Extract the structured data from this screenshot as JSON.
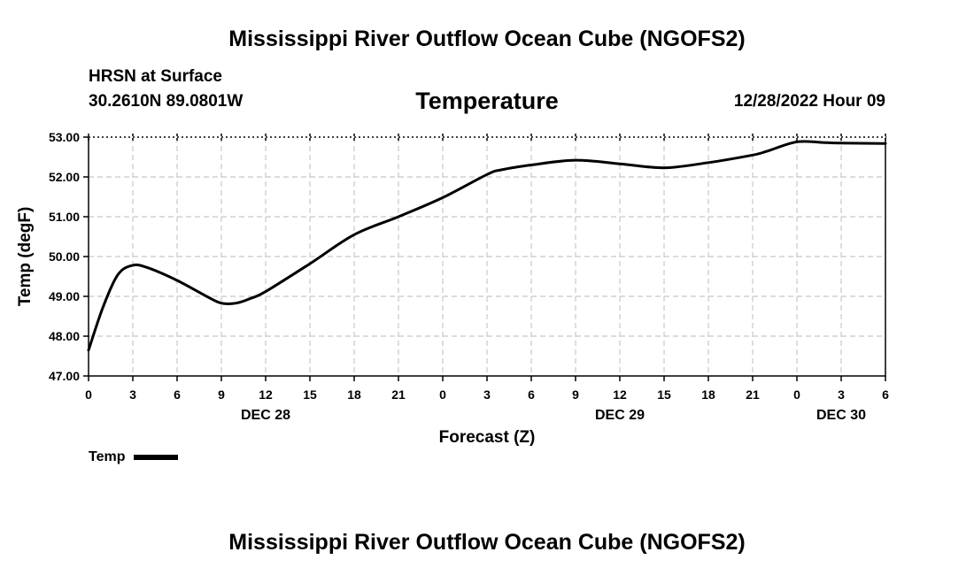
{
  "header": {
    "title": "Mississippi River Outflow Ocean Cube (NGOFS2)",
    "station": "HRSN at Surface",
    "coordinates": "30.2610N  89.0801W",
    "variable_title": "Temperature",
    "datetime": "12/28/2022 Hour 09"
  },
  "footer": {
    "title": "Mississippi River Outflow Ocean Cube (NGOFS2)"
  },
  "legend": {
    "label": "Temp"
  },
  "colors": {
    "line": "#000000",
    "grid": "#c8c8c8",
    "axis": "#000000"
  },
  "chart_data": {
    "type": "line",
    "title": "Temperature",
    "xlabel": "Forecast (Z)",
    "ylabel": "Temp (degF)",
    "xlim": [
      0,
      54
    ],
    "ylim": [
      47.0,
      53.0
    ],
    "y_ticks": [
      "47.00",
      "48.00",
      "49.00",
      "50.00",
      "51.00",
      "52.00",
      "53.00"
    ],
    "x_ticks": [
      "0",
      "3",
      "6",
      "9",
      "12",
      "15",
      "18",
      "21",
      "0",
      "3",
      "6",
      "9",
      "12",
      "15",
      "18",
      "21",
      "0",
      "3",
      "6"
    ],
    "day_labels": [
      {
        "label": "DEC 28",
        "hour": 12
      },
      {
        "label": "DEC 29",
        "hour": 36
      },
      {
        "label": "DEC 30",
        "hour": 51
      }
    ],
    "series": [
      {
        "name": "Temp",
        "x": [
          0,
          1,
          2,
          3,
          4,
          6,
          8,
          9,
          10,
          11,
          12,
          15,
          18,
          21,
          24,
          27,
          28,
          30,
          33,
          36,
          39,
          42,
          45,
          46,
          48,
          50,
          51,
          54
        ],
        "y": [
          47.65,
          48.75,
          49.55,
          49.78,
          49.72,
          49.4,
          49.0,
          48.83,
          48.83,
          48.95,
          49.12,
          49.82,
          50.55,
          51.0,
          51.48,
          52.06,
          52.18,
          52.3,
          52.42,
          52.33,
          52.23,
          52.36,
          52.55,
          52.65,
          52.88,
          52.86,
          52.85,
          52.84
        ]
      }
    ]
  }
}
